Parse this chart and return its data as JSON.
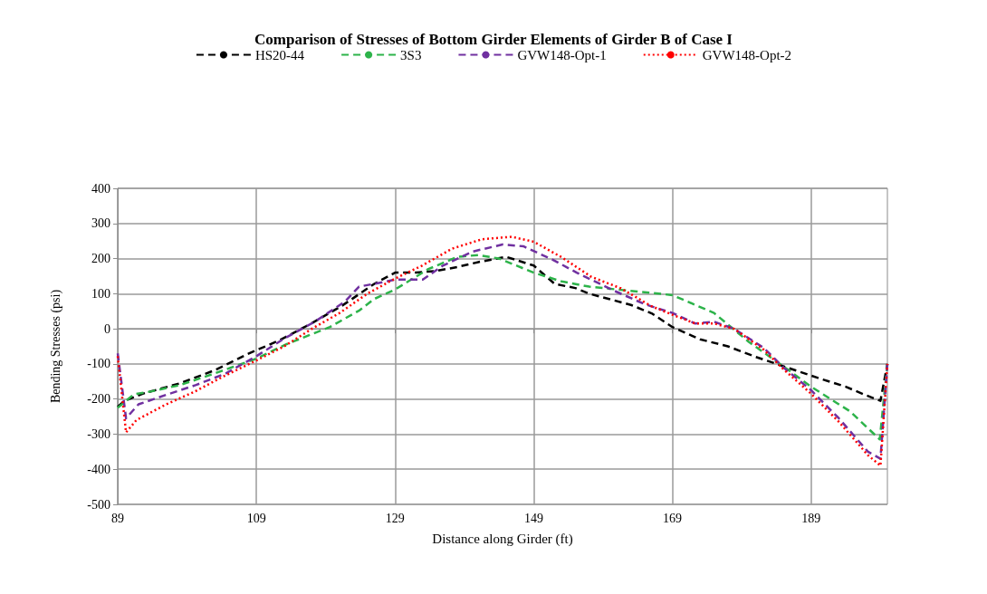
{
  "chart_data": {
    "type": "line",
    "title": "Comparison of Stresses of Bottom Girder Elements of Girder B of Case I",
    "xlabel": "Distance along Girder (ft)",
    "ylabel": "Bending Stresses (psi)",
    "xlim": [
      89,
      200
    ],
    "xticks": [
      89,
      109,
      129,
      149,
      169,
      189
    ],
    "ylim": [
      -500,
      400
    ],
    "yticks": [
      -500,
      -400,
      -300,
      -200,
      -100,
      0,
      100,
      200,
      300,
      400
    ],
    "grid": true,
    "legend": "top",
    "series": [
      {
        "name": "HS20-44",
        "color": "#000000",
        "line_style": "dashed",
        "x": [
          89,
          90,
          92.6,
          98,
          103,
          107.6,
          112.4,
          117,
          121.3,
          126,
          129,
          132,
          135,
          138,
          141,
          145,
          149,
          152,
          155,
          157,
          160,
          163,
          166,
          169,
          173,
          177,
          181,
          184,
          187,
          190,
          194,
          197,
          199,
          200
        ],
        "values": [
          -222,
          -205,
          -185,
          -155,
          -118,
          -73,
          -32,
          16,
          65,
          128,
          160,
          160,
          165,
          176,
          190,
          205,
          180,
          128,
          116,
          100,
          84,
          68,
          44,
          5,
          -30,
          -50,
          -80,
          -100,
          -120,
          -140,
          -165,
          -190,
          -205,
          -100
        ]
      },
      {
        "name": "3S3",
        "color": "#2db34a",
        "line_style": "dashed",
        "x": [
          89,
          91.3,
          93.9,
          98,
          103,
          109,
          113.2,
          119.6,
          123.9,
          126,
          129,
          133.8,
          138,
          141,
          144,
          149,
          153,
          157,
          161,
          165,
          169,
          175,
          180,
          185.2,
          189,
          194.6,
          198.9,
          200
        ],
        "values": [
          -225,
          -187,
          -178,
          -160,
          -127,
          -85,
          -45,
          5,
          53,
          85,
          112,
          170,
          205,
          210,
          200,
          160,
          135,
          120,
          112,
          104,
          96,
          45,
          -37,
          -110,
          -165,
          -235,
          -315,
          -100
        ]
      },
      {
        "name": "GVW148-Opt-1",
        "color": "#7030a0",
        "line_style": "dashed",
        "x": [
          89,
          90.2,
          92,
          96,
          100.3,
          104.6,
          109,
          113,
          117.4,
          121.8,
          123.8,
          127.3,
          129,
          133,
          135.9,
          140.2,
          144.5,
          147.5,
          151.8,
          155.2,
          160.4,
          165,
          169,
          172.3,
          175,
          177.9,
          182.2,
          185,
          189,
          193,
          197.2,
          199,
          200
        ],
        "values": [
          -70,
          -255,
          -215,
          -188,
          -160,
          -127,
          -78,
          -28,
          20,
          78,
          120,
          133,
          140,
          140,
          180,
          220,
          240,
          235,
          196,
          160,
          110,
          70,
          45,
          15,
          20,
          0,
          -55,
          -110,
          -175,
          -255,
          -350,
          -370,
          -100
        ]
      },
      {
        "name": "GVW148-Opt-2",
        "color": "#ff0000",
        "line_style": "dotted",
        "x": [
          89,
          90.2,
          91.7,
          96,
          100,
          104,
          109,
          113,
          117,
          121,
          125,
          129,
          132.9,
          137.2,
          141.5,
          145.8,
          149,
          153,
          157.3,
          161.6,
          165.9,
          169,
          172.3,
          175,
          177.9,
          182.2,
          185,
          189,
          193,
          197.2,
          199,
          200
        ],
        "values": [
          -78,
          -295,
          -260,
          -215,
          -180,
          -138,
          -90,
          -50,
          0,
          45,
          100,
          143,
          180,
          228,
          255,
          262,
          248,
          204,
          148,
          115,
          65,
          40,
          15,
          15,
          0,
          -60,
          -115,
          -185,
          -265,
          -360,
          -390,
          -100
        ]
      }
    ]
  }
}
